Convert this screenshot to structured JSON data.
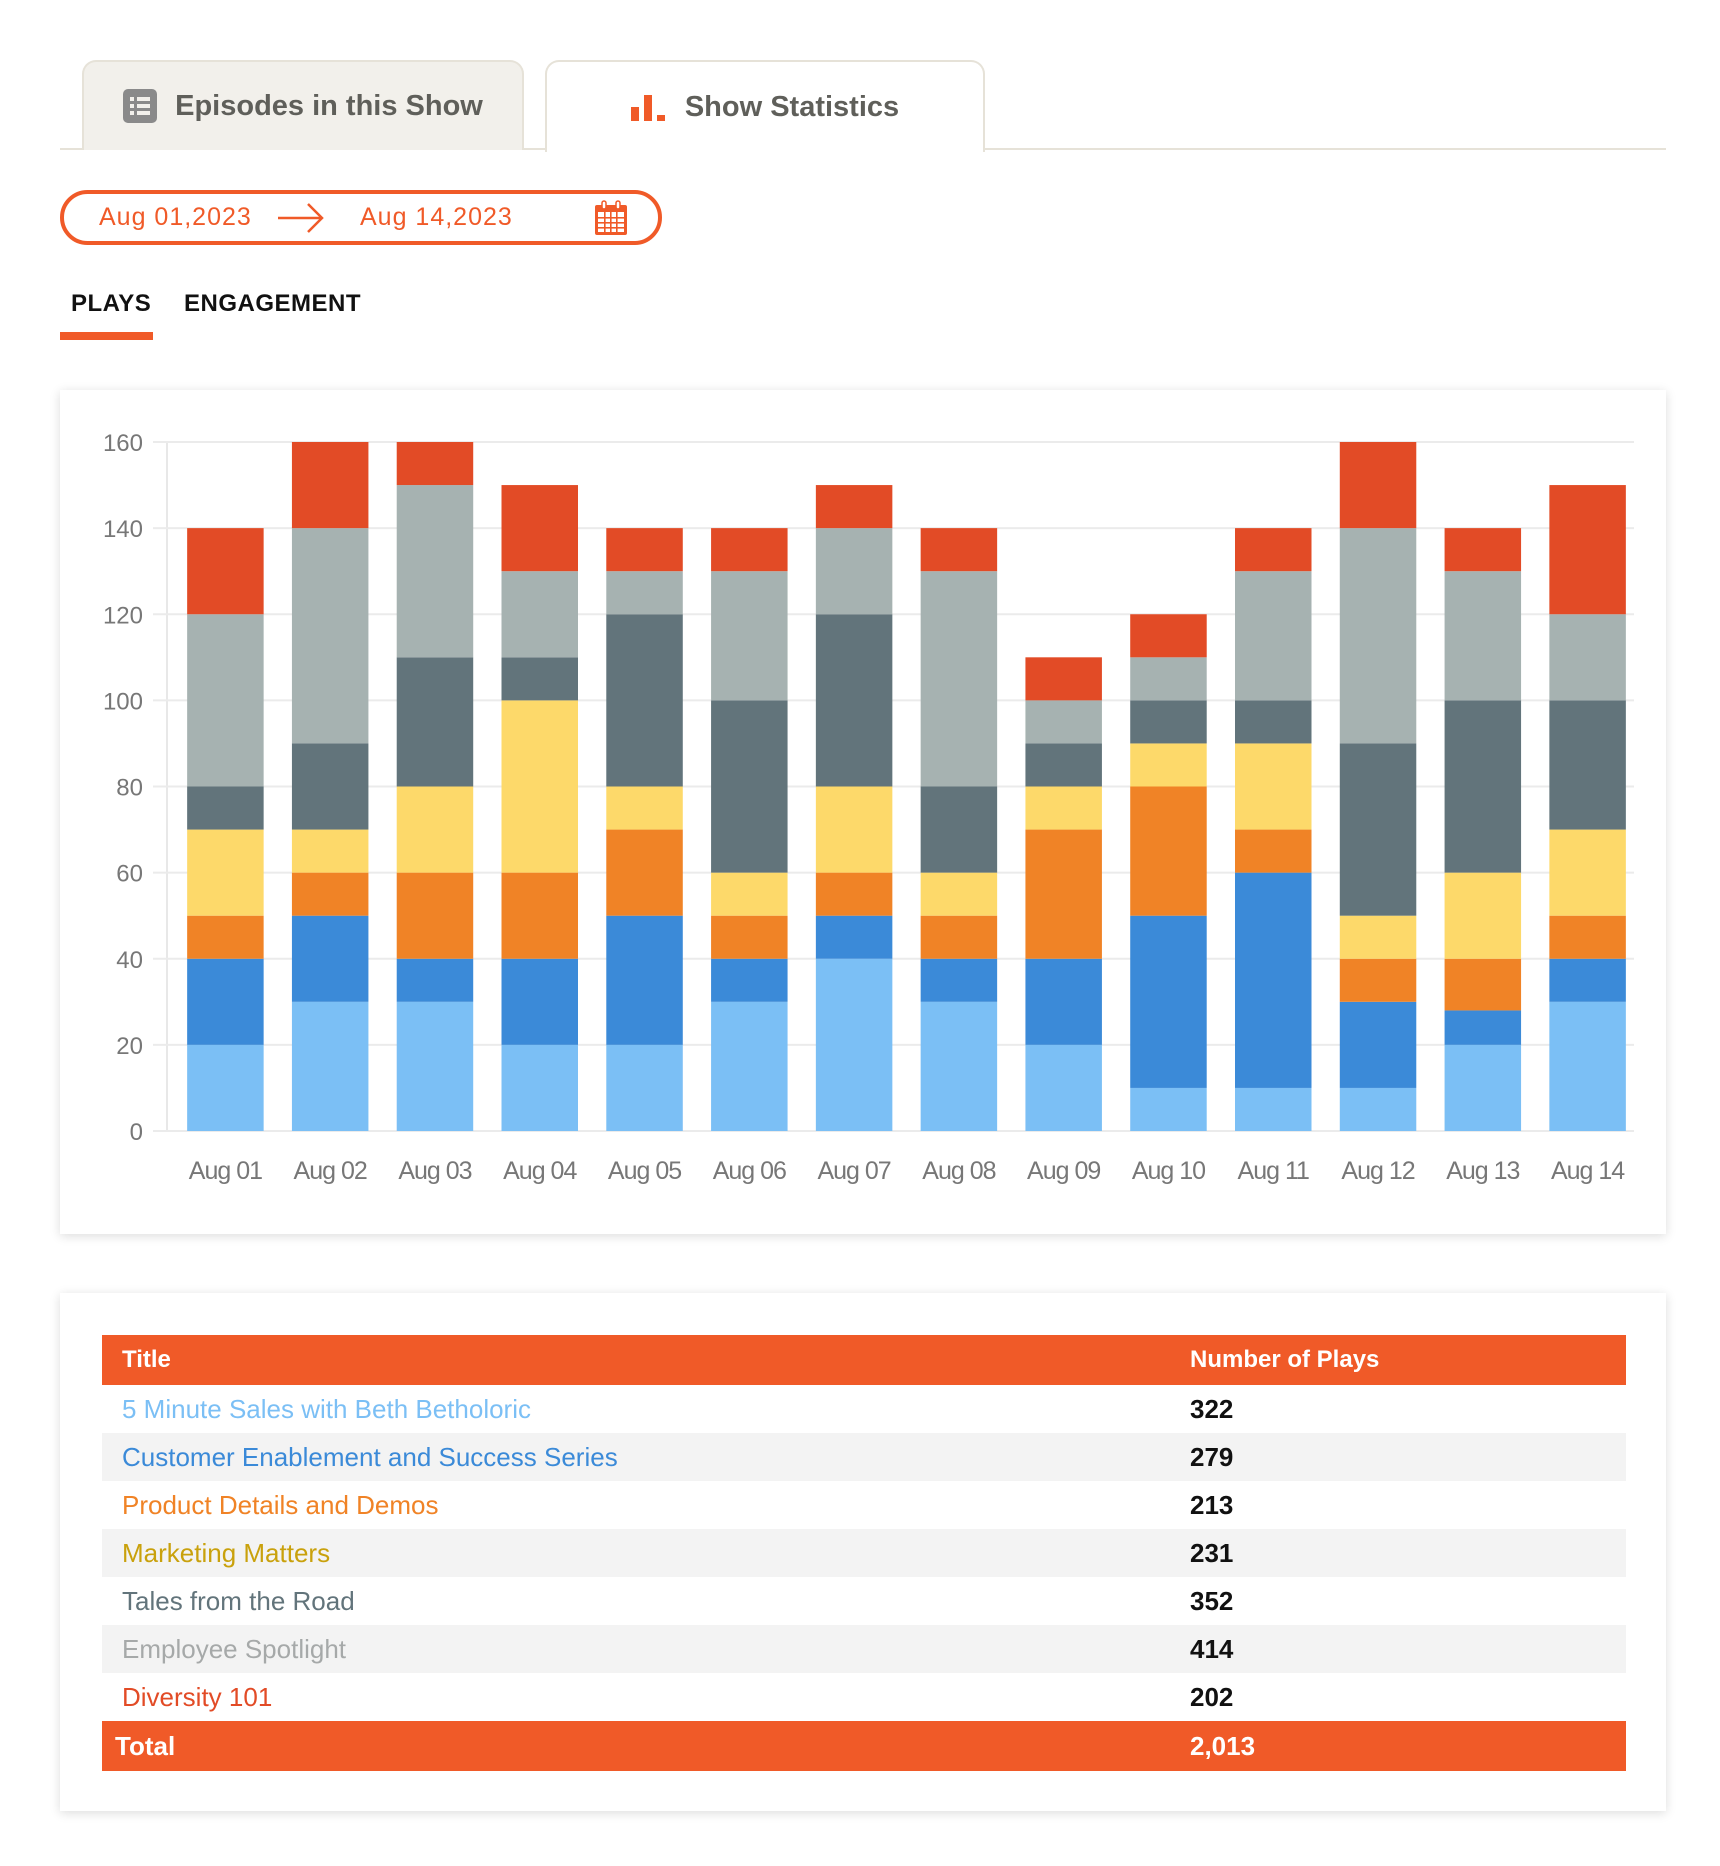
{
  "tabs": [
    {
      "label": "Episodes in this Show",
      "icon": "list-icon",
      "active": false
    },
    {
      "label": "Show Statistics",
      "icon": "bar-chart-icon",
      "active": true
    }
  ],
  "date_range": {
    "from": "Aug 01,2023",
    "to": "Aug 14,2023",
    "arrow_icon": "arrow-right-icon",
    "calendar_icon": "calendar-icon"
  },
  "subtabs": [
    {
      "label": "PLAYS",
      "active": true
    },
    {
      "label": "ENGAGEMENT",
      "active": false
    }
  ],
  "colors": {
    "accent": "#f05a28",
    "series": [
      "#7bbff5",
      "#3b8ad8",
      "#f08326",
      "#fdd96a",
      "#62747b",
      "#a6b2b1",
      "#e24b26"
    ]
  },
  "chart_data": {
    "type": "bar",
    "stacked": true,
    "title": "",
    "xlabel": "",
    "ylabel": "",
    "ylim": [
      0,
      160
    ],
    "yticks": [
      0,
      20,
      40,
      60,
      80,
      100,
      120,
      140,
      160
    ],
    "grid": true,
    "legend": "none",
    "categories": [
      "Aug 01",
      "Aug 02",
      "Aug 03",
      "Aug 04",
      "Aug 05",
      "Aug 06",
      "Aug 07",
      "Aug 08",
      "Aug 09",
      "Aug 10",
      "Aug 11",
      "Aug 12",
      "Aug 13",
      "Aug 14"
    ],
    "series": [
      {
        "name": "5 Minute Sales with Beth Betholoric",
        "color": "#7bbff5",
        "values": [
          20,
          30,
          30,
          20,
          20,
          30,
          40,
          30,
          20,
          10,
          10,
          10,
          20,
          30
        ]
      },
      {
        "name": "Customer Enablement and Success Series",
        "color": "#3b8ad8",
        "values": [
          20,
          20,
          10,
          20,
          30,
          10,
          10,
          10,
          20,
          40,
          50,
          20,
          8,
          10
        ]
      },
      {
        "name": "Product Details and Demos",
        "color": "#f08326",
        "values": [
          10,
          10,
          20,
          20,
          20,
          10,
          10,
          10,
          30,
          30,
          10,
          10,
          12,
          10
        ]
      },
      {
        "name": "Marketing Matters",
        "color": "#fdd96a",
        "values": [
          20,
          10,
          20,
          40,
          10,
          10,
          20,
          10,
          10,
          10,
          20,
          10,
          20,
          20
        ]
      },
      {
        "name": "Tales from the Road",
        "color": "#62747b",
        "values": [
          10,
          20,
          30,
          10,
          40,
          40,
          40,
          20,
          10,
          10,
          10,
          40,
          40,
          30
        ]
      },
      {
        "name": "Employee Spotlight",
        "color": "#a6b2b1",
        "values": [
          40,
          50,
          40,
          20,
          10,
          30,
          20,
          50,
          10,
          10,
          30,
          50,
          30,
          20
        ]
      },
      {
        "name": "Diversity 101",
        "color": "#e24b26",
        "values": [
          20,
          20,
          10,
          20,
          10,
          10,
          10,
          10,
          10,
          10,
          10,
          20,
          10,
          30
        ]
      }
    ]
  },
  "table": {
    "headers": [
      "Title",
      "Number of Plays"
    ],
    "rows": [
      {
        "title": "5 Minute Sales with Beth Betholoric",
        "plays": "322",
        "color": "#7bbff5"
      },
      {
        "title": "Customer Enablement and Success Series",
        "plays": "279",
        "color": "#3b8ad8"
      },
      {
        "title": "Product Details and Demos",
        "plays": "213",
        "color": "#f08326"
      },
      {
        "title": "Marketing Matters",
        "plays": "231",
        "color": "#c9a10c"
      },
      {
        "title": "Tales from the Road",
        "plays": "352",
        "color": "#62747b"
      },
      {
        "title": "Employee Spotlight",
        "plays": "414",
        "color": "#a6a9a9"
      },
      {
        "title": "Diversity 101",
        "plays": "202",
        "color": "#e24b26"
      }
    ],
    "total_label": "Total",
    "total_value": "2,013"
  }
}
